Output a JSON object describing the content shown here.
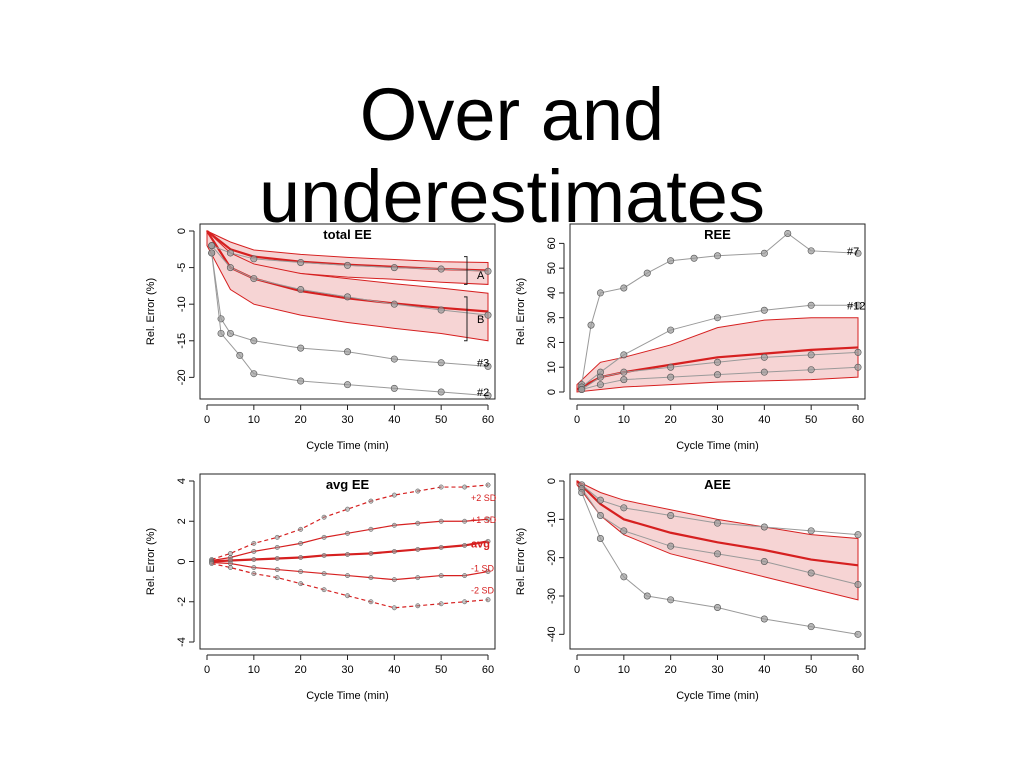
{
  "slide": {
    "title_line1": "Over and",
    "title_line2": "underestimates"
  },
  "colors": {
    "points": "#555555",
    "point_fill": "#9a9a9a",
    "mean_line": "#d62020",
    "band_fill": "#f6d4d4",
    "band_edge": "#d62020"
  },
  "chart_data": [
    {
      "id": "total-ee",
      "type": "scatter",
      "title": "total EE",
      "xlabel": "Cycle Time (min)",
      "ylabel": "Rel. Error (%)",
      "xlim": [
        0,
        60
      ],
      "ylim": [
        -22,
        0
      ],
      "xticks": [
        0,
        10,
        20,
        30,
        40,
        50,
        60
      ],
      "yticks": [
        0,
        -5,
        -10,
        -15,
        -20
      ],
      "bands": [
        {
          "x": [
            0,
            5,
            10,
            20,
            30,
            40,
            50,
            60
          ],
          "mean": [
            0,
            -2.5,
            -3.5,
            -4.2,
            -4.6,
            -4.9,
            -5.2,
            -5.4
          ],
          "lower": [
            -1,
            -4,
            -5,
            -5.8,
            -6.3,
            -6.6,
            -7,
            -7.3
          ],
          "upper": [
            0,
            -1.5,
            -2.6,
            -3.2,
            -3.6,
            -3.9,
            -4.2,
            -4.3
          ]
        },
        {
          "x": [
            0,
            5,
            10,
            20,
            30,
            40,
            50,
            60
          ],
          "mean": [
            0,
            -5,
            -6.5,
            -8.2,
            -9.2,
            -9.9,
            -10.5,
            -11
          ],
          "lower": [
            -2,
            -8,
            -10,
            -11.5,
            -12.5,
            -13.3,
            -14,
            -15
          ],
          "upper": [
            0,
            -3,
            -4.5,
            -5.8,
            -6.5,
            -7.2,
            -7.8,
            -8.5
          ]
        }
      ],
      "series": [
        {
          "x": [
            1,
            5,
            10,
            20,
            30,
            40,
            50,
            60
          ],
          "y": [
            -2,
            -3,
            -3.8,
            -4.3,
            -4.7,
            -5,
            -5.2,
            -5.5
          ]
        },
        {
          "x": [
            1,
            5,
            10,
            20,
            30,
            40,
            50,
            60
          ],
          "y": [
            -2,
            -5,
            -6.5,
            -8,
            -9,
            -10,
            -10.8,
            -11.5
          ]
        },
        {
          "x": [
            1,
            3,
            5,
            10,
            20,
            30,
            40,
            50,
            60
          ],
          "y": [
            -3,
            -12,
            -14,
            -15,
            -16,
            -16.5,
            -17.5,
            -18,
            -18.5
          ]
        },
        {
          "x": [
            1,
            3,
            7,
            10,
            20,
            30,
            40,
            50,
            60
          ],
          "y": [
            -3,
            -14,
            -17,
            -19.5,
            -20.5,
            -21,
            -21.5,
            -22,
            -22.5
          ]
        }
      ],
      "annotations": [
        {
          "text": "A",
          "x": 62,
          "y": -6
        },
        {
          "text": "B",
          "x": 62,
          "y": -12
        },
        {
          "text": "#3",
          "x": 62,
          "y": -18
        },
        {
          "text": "#2",
          "x": 62,
          "y": -22
        }
      ]
    },
    {
      "id": "ree",
      "type": "scatter",
      "title": "REE",
      "xlabel": "Cycle Time (min)",
      "ylabel": "Rel. Error (%)",
      "xlim": [
        0,
        60
      ],
      "ylim": [
        0,
        65
      ],
      "xticks": [
        0,
        10,
        20,
        30,
        40,
        50,
        60
      ],
      "yticks": [
        0,
        10,
        20,
        30,
        40,
        50,
        60
      ],
      "bands": [
        {
          "x": [
            0,
            5,
            10,
            20,
            30,
            40,
            50,
            60
          ],
          "mean": [
            1,
            6,
            8,
            11,
            14,
            15.5,
            17,
            18
          ],
          "lower": [
            0,
            1,
            2,
            3,
            4,
            4.5,
            5,
            6
          ],
          "upper": [
            3,
            12,
            14,
            19,
            26,
            29,
            30,
            30
          ]
        }
      ],
      "series": [
        {
          "x": [
            1,
            3,
            5,
            10,
            15,
            20,
            25,
            30,
            40,
            45,
            50,
            60
          ],
          "y": [
            3,
            27,
            40,
            42,
            48,
            53,
            54,
            55,
            56,
            64,
            57,
            56
          ]
        },
        {
          "x": [
            1,
            5,
            10,
            20,
            30,
            40,
            50,
            60
          ],
          "y": [
            2,
            8,
            15,
            25,
            30,
            33,
            35,
            35
          ]
        },
        {
          "x": [
            1,
            5,
            10,
            20,
            30,
            40,
            50,
            60
          ],
          "y": [
            1,
            6,
            8,
            10,
            12,
            14,
            15,
            16
          ]
        },
        {
          "x": [
            1,
            5,
            10,
            20,
            30,
            40,
            50,
            60
          ],
          "y": [
            1,
            3,
            5,
            6,
            7,
            8,
            9,
            10
          ]
        }
      ],
      "annotations": [
        {
          "text": "#7",
          "x": 62,
          "y": 57
        },
        {
          "text": "#12",
          "x": 62,
          "y": 35
        }
      ]
    },
    {
      "id": "avg-ee",
      "type": "line",
      "title": "avg EE",
      "xlabel": "Cycle Time (min)",
      "ylabel": "Rel. Error (%)",
      "xlim": [
        0,
        60
      ],
      "ylim": [
        -4,
        4
      ],
      "xticks": [
        0,
        10,
        20,
        30,
        40,
        50,
        60
      ],
      "yticks": [
        4,
        2,
        0,
        -2,
        -4
      ],
      "series": [
        {
          "name": "+2 SD",
          "x": [
            1,
            5,
            10,
            15,
            20,
            25,
            30,
            35,
            40,
            45,
            50,
            55,
            60
          ],
          "y": [
            0.1,
            0.4,
            0.9,
            1.2,
            1.6,
            2.2,
            2.6,
            3,
            3.3,
            3.5,
            3.7,
            3.7,
            3.8
          ]
        },
        {
          "name": "+1 SD",
          "x": [
            1,
            5,
            10,
            15,
            20,
            25,
            30,
            35,
            40,
            45,
            50,
            55,
            60
          ],
          "y": [
            0.05,
            0.2,
            0.5,
            0.7,
            0.9,
            1.2,
            1.4,
            1.6,
            1.8,
            1.9,
            2,
            2,
            2.1
          ]
        },
        {
          "name": "avg",
          "x": [
            1,
            5,
            10,
            15,
            20,
            25,
            30,
            35,
            40,
            45,
            50,
            55,
            60
          ],
          "y": [
            0,
            0.05,
            0.1,
            0.15,
            0.2,
            0.3,
            0.35,
            0.4,
            0.5,
            0.6,
            0.7,
            0.8,
            1
          ]
        },
        {
          "name": "-1 SD",
          "x": [
            1,
            5,
            10,
            15,
            20,
            25,
            30,
            35,
            40,
            45,
            50,
            55,
            60
          ],
          "y": [
            -0.05,
            -0.1,
            -0.3,
            -0.4,
            -0.5,
            -0.6,
            -0.7,
            -0.8,
            -0.9,
            -0.8,
            -0.7,
            -0.7,
            -0.5
          ]
        },
        {
          "name": "-2 SD",
          "x": [
            1,
            5,
            10,
            15,
            20,
            25,
            30,
            35,
            40,
            45,
            50,
            55,
            60
          ],
          "y": [
            -0.1,
            -0.3,
            -0.6,
            -0.8,
            -1.1,
            -1.4,
            -1.7,
            -2,
            -2.3,
            -2.2,
            -2.1,
            -2,
            -1.9
          ]
        }
      ],
      "annotations": [
        {
          "text": "+2 SD",
          "x": 62,
          "y": 3.2
        },
        {
          "text": "+1 SD",
          "x": 62,
          "y": 2.1
        },
        {
          "text": "avg",
          "x": 62,
          "y": 0.9
        },
        {
          "text": "-1 SD",
          "x": 62,
          "y": -0.3
        },
        {
          "text": "-2 SD",
          "x": 62,
          "y": -1.4
        }
      ]
    },
    {
      "id": "aee",
      "type": "scatter",
      "title": "AEE",
      "xlabel": "Cycle Time (min)",
      "ylabel": "Rel. Error (%)",
      "xlim": [
        0,
        60
      ],
      "ylim": [
        -42,
        0
      ],
      "xticks": [
        0,
        10,
        20,
        30,
        40,
        50,
        60
      ],
      "yticks": [
        0,
        -10,
        -20,
        -30,
        -40
      ],
      "bands": [
        {
          "x": [
            0,
            5,
            10,
            20,
            30,
            40,
            50,
            60
          ],
          "mean": [
            0,
            -6,
            -10,
            -13.5,
            -16,
            -18,
            -20.5,
            -22
          ],
          "lower": [
            -1,
            -9,
            -14,
            -19,
            -22,
            -25,
            -28,
            -31
          ],
          "upper": [
            0,
            -3,
            -5,
            -7.5,
            -10,
            -12,
            -14,
            -15
          ]
        }
      ],
      "series": [
        {
          "x": [
            1,
            5,
            10,
            20,
            30,
            40,
            50,
            60
          ],
          "y": [
            -1,
            -5,
            -7,
            -9,
            -11,
            -12,
            -13,
            -14
          ]
        },
        {
          "x": [
            1,
            5,
            10,
            20,
            30,
            40,
            50,
            60
          ],
          "y": [
            -2,
            -9,
            -13,
            -17,
            -19,
            -21,
            -24,
            -27
          ]
        },
        {
          "x": [
            1,
            5,
            10,
            15,
            20,
            30,
            40,
            50,
            60
          ],
          "y": [
            -3,
            -15,
            -25,
            -30,
            -31,
            -33,
            -36,
            -38,
            -40
          ]
        }
      ],
      "annotations": []
    }
  ]
}
